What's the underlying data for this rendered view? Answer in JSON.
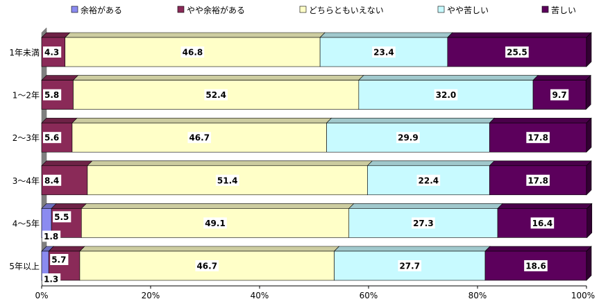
{
  "chart_data": {
    "type": "bar",
    "orientation": "horizontal",
    "stacked": "percent",
    "three_d": true,
    "categories": [
      "1年未満",
      "1～2年",
      "2～3年",
      "3～4年",
      "4～5年",
      "5年以上"
    ],
    "series": [
      {
        "name": "余裕がある",
        "color": "#8b8bf0",
        "values": [
          0,
          0,
          0,
          0,
          1.8,
          1.3
        ]
      },
      {
        "name": "やや余裕がある",
        "color": "#8a2a58",
        "values": [
          4.3,
          5.8,
          5.6,
          8.4,
          5.5,
          5.7
        ]
      },
      {
        "name": "どちらともいえない",
        "color": "#ffffc8",
        "values": [
          46.8,
          52.4,
          46.7,
          51.4,
          49.1,
          46.7
        ]
      },
      {
        "name": "やや苦しい",
        "color": "#c8faff",
        "values": [
          23.4,
          32.0,
          29.9,
          22.4,
          27.3,
          27.7
        ]
      },
      {
        "name": "苦しい",
        "color": "#5c005c",
        "values": [
          25.5,
          9.7,
          17.8,
          17.8,
          16.4,
          18.6
        ]
      }
    ],
    "value_labels": [
      [
        null,
        "4.3",
        "46.8",
        "23.4",
        "25.5"
      ],
      [
        null,
        "5.8",
        "52.4",
        "32.0",
        "9.7"
      ],
      [
        null,
        "5.6",
        "46.7",
        "29.9",
        "17.8"
      ],
      [
        null,
        "8.4",
        "51.4",
        "22.4",
        "17.8"
      ],
      [
        "1.8",
        "5.5",
        "49.1",
        "27.3",
        "16.4"
      ],
      [
        "1.3",
        "5.7",
        "46.7",
        "27.7",
        "18.6"
      ]
    ],
    "x_ticks": [
      "0%",
      "20%",
      "40%",
      "60%",
      "80%",
      "100%"
    ],
    "xlim": [
      0,
      100
    ],
    "grid": false,
    "legend_position": "top"
  }
}
